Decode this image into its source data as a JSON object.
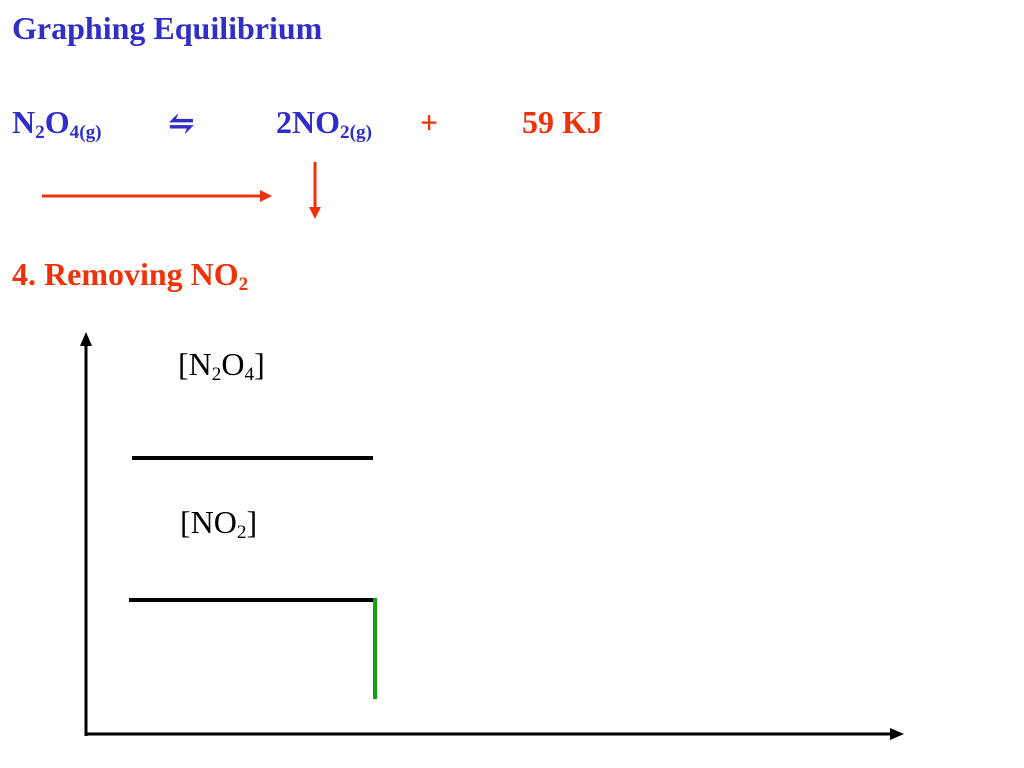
{
  "title": "Graphing Equilibrium",
  "equation": {
    "reactant": {
      "text": "N",
      "sub1": "2",
      "text2": "O",
      "sub2": "4(g)"
    },
    "equilibrium_symbol": "⇋",
    "product": {
      "text": "2NO",
      "sub": "2(g)"
    },
    "plus": "+",
    "energy": "59 KJ"
  },
  "subtitle": {
    "text": "4. Removing NO",
    "sub": "2"
  },
  "graph": {
    "label_n2o4": {
      "pre": "[N",
      "sub1": "2",
      "mid": "O",
      "sub2": "4",
      "post": "]"
    },
    "label_no2": {
      "pre": "[NO",
      "sub": "2",
      "post": "]"
    }
  },
  "colors": {
    "title_blue": "#2f2fc8",
    "accent_red": "#f0320a",
    "axis": "#000000",
    "drop_line_green": "#10a010"
  }
}
